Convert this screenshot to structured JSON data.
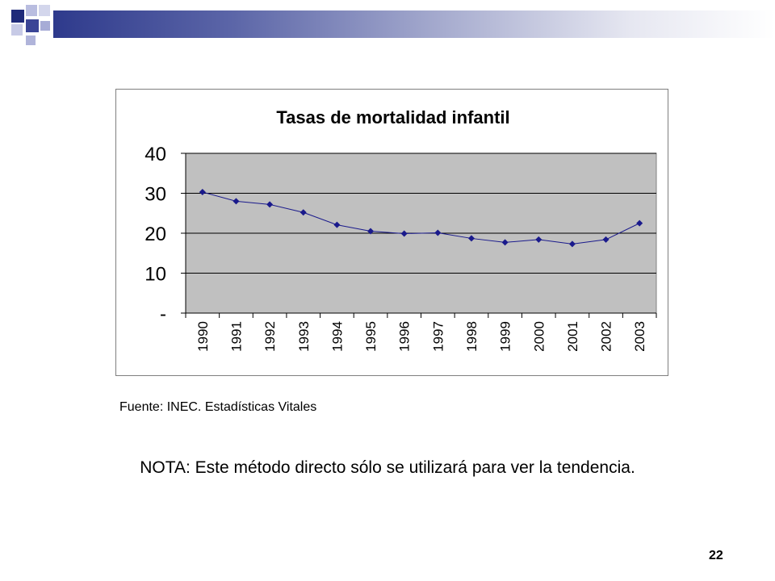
{
  "slide": {
    "source_text": "Fuente: INEC. Estadísticas Vitales",
    "note_text": "NOTA: Este método directo sólo se utilizará para ver la tendencia.",
    "page_number": "22",
    "colors": {
      "header_dark": "#2e3a8c",
      "square_dark": "#1f2a7a",
      "square_light": "#b9bde0",
      "plot_background": "#c0c0c0",
      "series": "#1a1a8c"
    }
  },
  "chart_data": {
    "type": "line",
    "title": "Tasas de mortalidad infantil",
    "xlabel": "",
    "ylabel": "",
    "categories": [
      "1990",
      "1991",
      "1992",
      "1993",
      "1994",
      "1995",
      "1996",
      "1997",
      "1998",
      "1999",
      "2000",
      "2001",
      "2002",
      "2003"
    ],
    "series": [
      {
        "values": [
          30.3,
          28.0,
          27.2,
          25.2,
          22.1,
          20.5,
          19.9,
          20.1,
          18.7,
          17.7,
          18.4,
          17.3,
          18.4,
          22.5
        ]
      }
    ],
    "ylim": [
      0,
      40
    ],
    "yticks": [
      0,
      10,
      20,
      30,
      40
    ],
    "ytick_labels": [
      "-",
      "10",
      "20",
      "30",
      "40"
    ],
    "grid": true,
    "legend": "none"
  }
}
